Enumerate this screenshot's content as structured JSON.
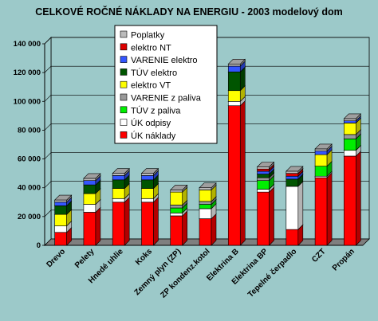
{
  "chart_data": {
    "type": "bar",
    "stacked": true,
    "three_d": true,
    "title": "CELKOVÉ  ROČNÉ  NÁKLADY  NA  ENERGIU - 2003 modelový dom",
    "xlabel": "",
    "ylabel": "",
    "ylim": [
      0,
      140000
    ],
    "yticks": [
      "0",
      "20 000",
      "40 000",
      "60 000",
      "80 000",
      "100 000",
      "120 000",
      "140 000"
    ],
    "ytick_values": [
      0,
      20000,
      40000,
      60000,
      80000,
      100000,
      120000,
      140000
    ],
    "grid": true,
    "legend_position": "top-center",
    "categories": [
      "Drevo",
      "Pelety",
      "Hnedé uhlie",
      "Koks",
      "Zemný plyn (ZP)",
      "ZP kondenz.kotol",
      "Elektrina B",
      "Elektrina BP",
      "Tepelné čerpadlo",
      "CZT",
      "Propán"
    ],
    "series": [
      {
        "name": "ÚK náklady",
        "color": "#ff0000",
        "values": [
          9000,
          23000,
          30000,
          30000,
          20500,
          18500,
          97000,
          37000,
          11000,
          47000,
          62000
        ]
      },
      {
        "name": "ÚK odpisy",
        "color": "#ffffff",
        "values": [
          4500,
          5500,
          2500,
          2500,
          2000,
          7000,
          3000,
          2000,
          30000,
          1000,
          4000
        ]
      },
      {
        "name": "TÚV z paliva",
        "color": "#00ee00",
        "values": [
          0,
          0,
          0,
          0,
          3500,
          3000,
          0,
          6000,
          0,
          7000,
          8000
        ]
      },
      {
        "name": "VARENIE z paliva",
        "color": "#999999",
        "values": [
          0,
          0,
          0,
          0,
          2000,
          2000,
          0,
          2000,
          0,
          0,
          3000
        ]
      },
      {
        "name": "elektro VT",
        "color": "#ffff00",
        "values": [
          8000,
          7500,
          7000,
          7000,
          9000,
          8000,
          7500,
          0,
          0,
          8000,
          8000
        ]
      },
      {
        "name": "TÚV elektro",
        "color": "#005500",
        "values": [
          6000,
          6000,
          6000,
          6000,
          0,
          0,
          13000,
          2500,
          5000,
          0,
          0
        ]
      },
      {
        "name": "VARENIE elektro",
        "color": "#3355ff",
        "values": [
          2500,
          3000,
          3000,
          3000,
          0,
          0,
          4000,
          2000,
          2000,
          2500,
          1500
        ]
      },
      {
        "name": "elektro NT",
        "color": "#dd0000",
        "values": [
          0,
          0,
          0,
          0,
          0,
          0,
          0,
          1500,
          2000,
          0,
          0
        ]
      },
      {
        "name": "Poplatky",
        "color": "#bbbbbb",
        "values": [
          1500,
          1500,
          1500,
          1500,
          1500,
          1500,
          1500,
          1500,
          1500,
          1500,
          1500
        ]
      }
    ]
  }
}
